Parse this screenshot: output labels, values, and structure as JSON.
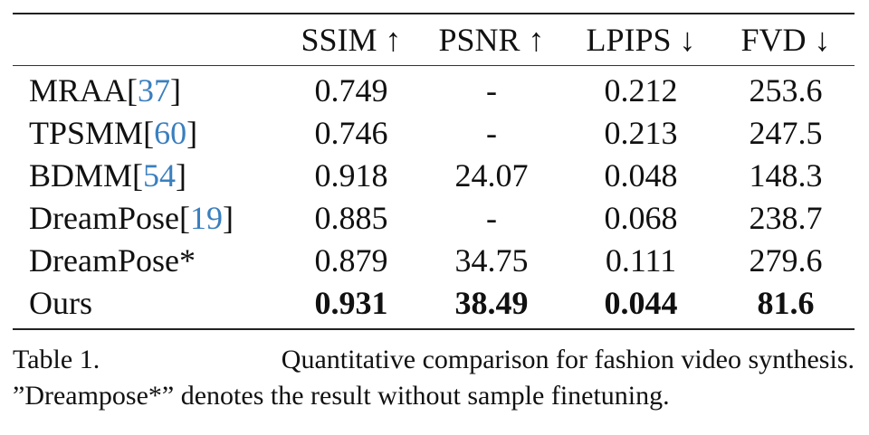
{
  "table": {
    "columns": [
      "",
      "SSIM ↑",
      "PSNR ↑",
      "LPIPS ↓",
      "FVD ↓"
    ],
    "rows": [
      {
        "method": "MRAA",
        "ref": "37",
        "ssim": "0.749",
        "psnr": "-",
        "lpips": "0.212",
        "fvd": "253.6"
      },
      {
        "method": "TPSMM",
        "ref": "60",
        "ssim": "0.746",
        "psnr": "-",
        "lpips": "0.213",
        "fvd": "247.5"
      },
      {
        "method": "BDMM",
        "ref": "54",
        "ssim": "0.918",
        "psnr": "24.07",
        "lpips": "0.048",
        "fvd": "148.3"
      },
      {
        "method": "DreamPose",
        "ref": "19",
        "ssim": "0.885",
        "psnr": "-",
        "lpips": "0.068",
        "fvd": "238.7"
      },
      {
        "method": "DreamPose*",
        "ref": "",
        "ssim": "0.879",
        "psnr": "34.75",
        "lpips": "0.111",
        "fvd": "279.6"
      },
      {
        "method": "Ours",
        "ref": "",
        "ssim": "0.931",
        "psnr": "38.49",
        "lpips": "0.044",
        "fvd": "81.6"
      }
    ],
    "link_color": "#3a7fbf"
  },
  "caption": {
    "label": "Table 1.",
    "line1_text": "Quantitative comparison for fashion video synthesis.",
    "line2_text": "”Dreampose*” denotes the result without sample finetuning."
  }
}
